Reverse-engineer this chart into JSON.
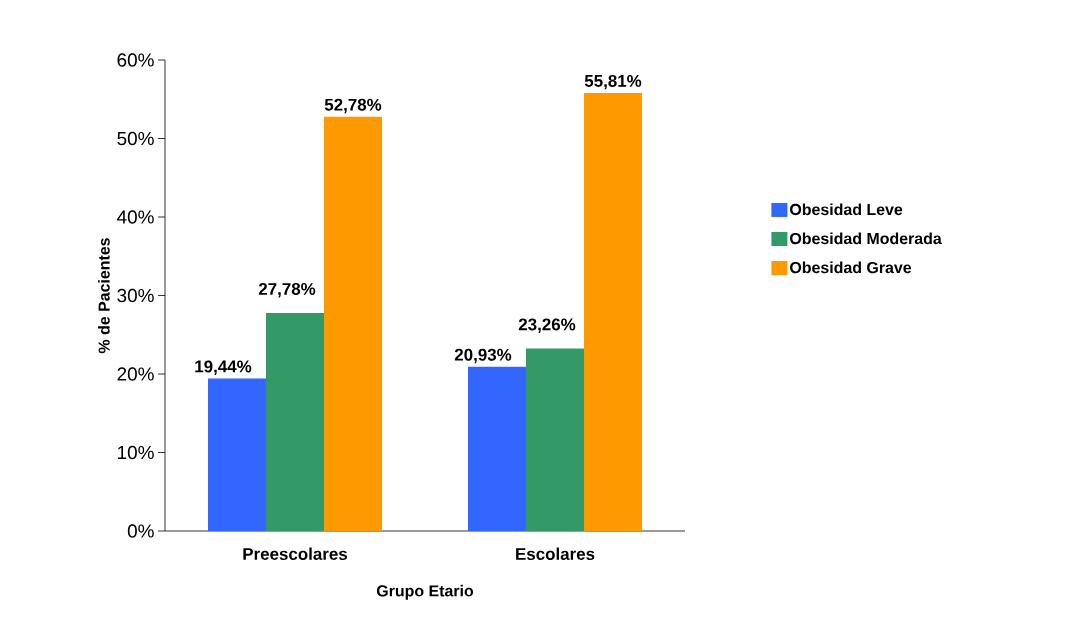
{
  "chart_data": {
    "type": "bar",
    "xlabel": "Grupo Etario",
    "ylabel": "% de Pacientes",
    "categories": [
      "Preescolares",
      "Escolares"
    ],
    "series": [
      {
        "name": "Obesidad Leve",
        "color": "#3366ff",
        "values": [
          19.44,
          20.93
        ],
        "value_labels": [
          "19,44%",
          "20,93%"
        ]
      },
      {
        "name": "Obesidad Moderada",
        "color": "#339966",
        "values": [
          27.78,
          23.26
        ],
        "value_labels": [
          "27,78%",
          "23,26%"
        ]
      },
      {
        "name": "Obesidad Grave",
        "color": "#ff9900",
        "values": [
          52.78,
          55.81
        ],
        "value_labels": [
          "52,78%",
          "55,81%"
        ]
      }
    ],
    "ylim": [
      0,
      60
    ],
    "yticks": [
      {
        "value": 0,
        "label": "0%"
      },
      {
        "value": 10,
        "label": "10%"
      },
      {
        "value": 20,
        "label": "20%"
      },
      {
        "value": 30,
        "label": "30%"
      },
      {
        "value": 40,
        "label": "40%"
      },
      {
        "value": 50,
        "label": "50%"
      },
      {
        "value": 60,
        "label": "60%"
      }
    ],
    "grid": false,
    "legend": "right"
  }
}
